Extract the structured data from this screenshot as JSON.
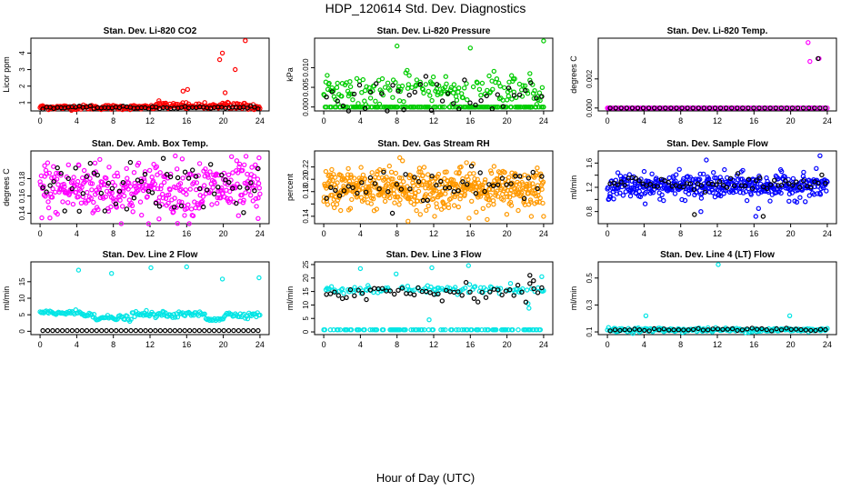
{
  "title": "HDP_120614 Std. Dev. Diagnostics",
  "xlabel": "Hour of Day (UTC)",
  "xticks": [
    0,
    4,
    8,
    12,
    16,
    20,
    24
  ],
  "chart_data": [
    {
      "type": "scatter",
      "title": "Stan. Dev. Li-820 CO2",
      "ylabel": "Licor ppm",
      "ylim": [
        0.5,
        4.9
      ],
      "yticks": [
        1,
        2,
        3,
        4
      ],
      "xlim": [
        -1,
        25
      ],
      "color": "#ff0000",
      "baseline": 0.72,
      "spread": 0.07,
      "n": 260,
      "bumps": [
        {
          "from": 12.5,
          "to": 23.5,
          "add": 0.35
        }
      ],
      "outliers": [
        [
          15.6,
          1.7
        ],
        [
          16.1,
          1.8
        ],
        [
          19.6,
          3.6
        ],
        [
          19.9,
          4.0
        ],
        [
          21.3,
          3.0
        ],
        [
          22.4,
          4.75
        ],
        [
          20.2,
          1.6
        ]
      ],
      "black_series": {
        "values": 0.7,
        "spread": 0.04,
        "n": 60
      }
    },
    {
      "type": "scatter",
      "title": "Stan. Dev. Li-820 Pressure",
      "ylabel": "kPa",
      "ylim": [
        -0.001,
        0.0175
      ],
      "yticks": [
        0.0,
        0.005,
        0.01
      ],
      "ytick_labels": [
        "0.000",
        "0.005",
        "0.010"
      ],
      "xlim": [
        -1,
        25
      ],
      "color": "#00cc00",
      "baseline": 0.0045,
      "spread": 0.0018,
      "n": 320,
      "zero_rows": true,
      "outliers": [
        [
          8,
          0.0155
        ],
        [
          16,
          0.015
        ],
        [
          24,
          0.0168
        ],
        [
          22.5,
          0.0085
        ],
        [
          20.5,
          0.008
        ]
      ],
      "black_series": {
        "values": 0.003,
        "spread": 0.0025,
        "n": 40
      }
    },
    {
      "type": "scatter",
      "title": "Stan. Dev. Li-820 Temp.",
      "ylabel": "degrees C",
      "ylim": [
        -0.0002,
        0.0048
      ],
      "yticks": [
        0.0,
        0.002
      ],
      "ytick_labels": [
        "0.000",
        "0.002"
      ],
      "xlim": [
        -1,
        25
      ],
      "color": "#ff00ff",
      "baseline": 0.0,
      "spread": 0.0,
      "n": 120,
      "zero_rows": true,
      "outliers": [
        [
          21.9,
          0.0045
        ],
        [
          22.1,
          0.0032
        ],
        [
          23.1,
          0.0034
        ],
        [
          22.3,
          0.0
        ],
        [
          0.1,
          0.0
        ]
      ],
      "black_series": {
        "values": 0.0,
        "spread": 0.0,
        "n": 40,
        "extra": [
          [
            23.0,
            0.0034
          ]
        ]
      }
    },
    {
      "type": "scatter",
      "title": "Stan. Dev. Amb. Box Temp.",
      "ylabel": "degrees C",
      "ylim": [
        0.128,
        0.212
      ],
      "yticks": [
        0.14,
        0.16,
        0.18
      ],
      "ytick_labels": [
        "0.14",
        "0.16",
        "0.18"
      ],
      "xlim": [
        -1,
        25
      ],
      "color": "#ff00ff",
      "baseline": 0.168,
      "spread": 0.016,
      "n": 380,
      "outliers": [
        [
          0.5,
          0.195
        ],
        [
          4.2,
          0.196
        ],
        [
          6.0,
          0.198
        ],
        [
          23.9,
          0.204
        ],
        [
          23.8,
          0.134
        ]
      ],
      "black_series": {
        "values": 0.17,
        "spread": 0.015,
        "n": 60
      }
    },
    {
      "type": "scatter",
      "title": "Stan. Dev. Gas Stream RH",
      "ylabel": "percent",
      "ylim": [
        0.128,
        0.246
      ],
      "yticks": [
        0.14,
        0.16,
        0.18,
        0.2,
        0.22
      ],
      "ytick_labels": [
        "0.14",
        "",
        "0.18",
        "0.20",
        "0.22"
      ],
      "xlim": [
        -1,
        25
      ],
      "color": "#ff9900",
      "baseline": 0.185,
      "spread": 0.016,
      "n": 520,
      "outliers": [
        [
          8.3,
          0.235
        ],
        [
          8.6,
          0.23
        ],
        [
          16.3,
          0.225
        ],
        [
          12.1,
          0.14
        ],
        [
          9.2,
          0.132
        ]
      ],
      "black_series": {
        "values": 0.19,
        "spread": 0.012,
        "n": 50
      }
    },
    {
      "type": "scatter",
      "title": "Stan. Dev. Sample Flow",
      "ylabel": "ml/min",
      "ylim": [
        0.6,
        1.8
      ],
      "yticks": [
        0.8,
        1.0,
        1.2,
        1.4,
        1.6
      ],
      "ytick_labels": [
        "0.8",
        "",
        "1.2",
        "",
        "1.6"
      ],
      "xlim": [
        -1,
        25
      ],
      "color": "#0000ff",
      "baseline": 1.22,
      "spread": 0.1,
      "n": 420,
      "outliers": [
        [
          10.8,
          1.65
        ],
        [
          16.2,
          0.72
        ],
        [
          16.5,
          0.85
        ],
        [
          10.2,
          0.8
        ],
        [
          23.2,
          1.72
        ]
      ],
      "black_series": {
        "values": 1.25,
        "spread": 0.06,
        "n": 60,
        "extra": [
          [
            17.0,
            0.72
          ],
          [
            9.5,
            0.75
          ]
        ]
      }
    },
    {
      "type": "scatter",
      "title": "Stan. Dev. Line 2 Flow",
      "ylabel": "ml/min",
      "ylim": [
        -1,
        21
      ],
      "yticks": [
        0,
        5,
        10,
        15
      ],
      "xlim": [
        -1,
        25
      ],
      "color": "#00e5e5",
      "baseline": 5.0,
      "spread": 0.4,
      "n": 180,
      "steps": [
        {
          "from": 0,
          "to": 4.5,
          "value": 5.6
        },
        {
          "from": 4.5,
          "to": 6,
          "value": 5.2
        },
        {
          "from": 6,
          "to": 10,
          "value": 4.0
        },
        {
          "from": 10,
          "to": 16,
          "value": 5.0
        },
        {
          "from": 16,
          "to": 18,
          "value": 5.2
        },
        {
          "from": 18,
          "to": 20,
          "value": 3.8
        },
        {
          "from": 20,
          "to": 24,
          "value": 5.0
        }
      ],
      "outliers": [
        [
          4.2,
          18.5
        ],
        [
          7.8,
          17.5
        ],
        [
          12.1,
          19.2
        ],
        [
          16.0,
          19.5
        ],
        [
          19.9,
          15.8
        ],
        [
          23.9,
          16.2
        ],
        [
          11.6,
          6.3
        ],
        [
          13.5,
          5.8
        ]
      ],
      "black_series": {
        "values": 0.2,
        "spread": 0.0,
        "n": 45
      }
    },
    {
      "type": "scatter",
      "title": "Stan. Dev. Line 3 Flow",
      "ylabel": "ml/min",
      "ylim": [
        -1,
        26
      ],
      "yticks": [
        0,
        5,
        10,
        15,
        20,
        25
      ],
      "xlim": [
        -1,
        25
      ],
      "color": "#00e5e5",
      "baseline": 15.5,
      "spread": 0.8,
      "n": 200,
      "outliers": [
        [
          4.0,
          23.5
        ],
        [
          7.9,
          21.5
        ],
        [
          11.8,
          23.8
        ],
        [
          15.8,
          24.6
        ],
        [
          23.8,
          20.5
        ],
        [
          11.5,
          4.5
        ],
        [
          22.3,
          10.5
        ],
        [
          22.4,
          8.8
        ]
      ],
      "zero_rows": true,
      "zero_value": 0.8,
      "black_series": {
        "values": 15.0,
        "spread": 1.6,
        "n": 55,
        "extra": [
          [
            22.5,
            21.0
          ],
          [
            22.9,
            19.0
          ]
        ]
      }
    },
    {
      "type": "scatter",
      "title": "Stan. Dev. Line 4 (LT) Flow",
      "ylabel": "ml/min",
      "ylim": [
        0.08,
        0.62
      ],
      "yticks": [
        0.1,
        0.3,
        0.5
      ],
      "ytick_labels": [
        "0.1",
        "0.3",
        "0.5"
      ],
      "xlim": [
        -1,
        25
      ],
      "color": "#00e5e5",
      "baseline": 0.115,
      "spread": 0.008,
      "n": 200,
      "outliers": [
        [
          4.2,
          0.22
        ],
        [
          12.1,
          0.6
        ],
        [
          19.9,
          0.22
        ]
      ],
      "black_series": {
        "values": 0.118,
        "spread": 0.006,
        "n": 45
      }
    }
  ]
}
